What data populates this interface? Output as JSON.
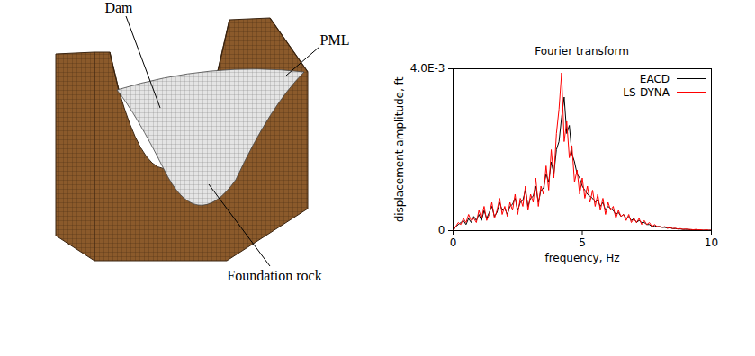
{
  "chart_data": {
    "type": "line",
    "title": "Fourier transform",
    "xlabel": "frequency, Hz",
    "ylabel": "displacement amplitude, ft",
    "x": [
      0,
      0.1,
      0.2,
      0.3,
      0.4,
      0.5,
      0.6,
      0.7,
      0.8,
      0.9,
      1,
      1.1,
      1.2,
      1.3,
      1.4,
      1.5,
      1.6,
      1.7,
      1.8,
      1.9,
      2,
      2.1,
      2.2,
      2.3,
      2.4,
      2.5,
      2.6,
      2.7,
      2.8,
      2.9,
      3,
      3.1,
      3.2,
      3.3,
      3.4,
      3.5,
      3.6,
      3.7,
      3.8,
      3.9,
      4,
      4.1,
      4.2,
      4.3,
      4.4,
      4.5,
      4.6,
      4.7,
      4.8,
      4.9,
      5,
      5.1,
      5.2,
      5.3,
      5.4,
      5.5,
      5.6,
      5.7,
      5.8,
      5.9,
      6,
      6.1,
      6.2,
      6.3,
      6.4,
      6.5,
      6.6,
      6.7,
      6.8,
      6.9,
      7,
      7.1,
      7.2,
      7.3,
      7.4,
      7.5,
      7.6,
      7.7,
      7.8,
      7.9,
      8,
      8.1,
      8.2,
      8.3,
      8.4,
      8.5,
      8.6,
      8.7,
      8.8,
      8.9,
      9,
      9.1,
      9.2,
      9.3,
      9.4,
      9.5,
      9.6,
      9.7,
      9.8,
      9.9,
      10
    ],
    "series": [
      {
        "name": "EACD",
        "color": "#000000",
        "values": [
          0,
          0.0001,
          0.00015,
          0.0002,
          0.00025,
          0.00015,
          0.0003,
          0.0002,
          0.00035,
          0.00025,
          0.0004,
          0.00025,
          0.0005,
          0.0003,
          0.00045,
          0.0006,
          0.00035,
          0.00045,
          0.0007,
          0.0005,
          0.00055,
          0.0004,
          0.0006,
          0.00065,
          0.0008,
          0.0005,
          0.0007,
          0.00075,
          0.001,
          0.0006,
          0.0008,
          0.00085,
          0.0011,
          0.0007,
          0.001,
          0.00105,
          0.0014,
          0.0012,
          0.0017,
          0.0014,
          0.002,
          0.0022,
          0.0028,
          0.0033,
          0.0024,
          0.0026,
          0.0019,
          0.0017,
          0.0014,
          0.0013,
          0.0011,
          0.001,
          0.0009,
          0.00085,
          0.0008,
          0.0007,
          0.00075,
          0.0006,
          0.0007,
          0.0005,
          0.0006,
          0.00055,
          0.0005,
          0.0004,
          0.00045,
          0.00035,
          0.0004,
          0.0003,
          0.00035,
          0.00025,
          0.0003,
          0.0002,
          0.00025,
          0.0002,
          0.0002,
          0.00015,
          0.00015,
          0.0001,
          0.00012,
          0.0001,
          0.0001,
          8e-05,
          8e-05,
          6e-05,
          7e-05,
          5e-05,
          5e-05,
          4e-05,
          4e-05,
          3e-05,
          3e-05,
          3e-05,
          2e-05,
          2e-05,
          2e-05,
          2e-05,
          1e-05,
          1e-05,
          1e-05,
          1e-05,
          1e-05
        ]
      },
      {
        "name": "LS-DYNA",
        "color": "#ff0000",
        "values": [
          0,
          0.0001,
          0.0002,
          0.00015,
          0.0003,
          0.0002,
          0.0004,
          0.00025,
          0.0003,
          0.0002,
          0.0005,
          0.0003,
          0.0006,
          0.00025,
          0.0004,
          0.0007,
          0.0003,
          0.0005,
          0.0008,
          0.0004,
          0.0006,
          0.00035,
          0.0007,
          0.0005,
          0.0009,
          0.0004,
          0.0008,
          0.0006,
          0.0011,
          0.0005,
          0.0009,
          0.0007,
          0.0013,
          0.0006,
          0.0011,
          0.0009,
          0.0016,
          0.001,
          0.002,
          0.0013,
          0.0024,
          0.003,
          0.0039,
          0.0022,
          0.0027,
          0.0018,
          0.0021,
          0.0012,
          0.0015,
          0.0009,
          0.0013,
          0.0008,
          0.0011,
          0.0007,
          0.001,
          0.0006,
          0.0009,
          0.0005,
          0.0008,
          0.0004,
          0.0007,
          0.0005,
          0.0006,
          0.0003,
          0.0005,
          0.00035,
          0.0004,
          0.00025,
          0.0004,
          0.0002,
          0.0003,
          0.0002,
          0.0003,
          0.00015,
          0.00025,
          0.00015,
          0.0002,
          0.0001,
          0.00015,
          0.0001,
          0.0001,
          8e-05,
          0.0001,
          6e-05,
          8e-05,
          5e-05,
          6e-05,
          4e-05,
          5e-05,
          3e-05,
          4e-05,
          3e-05,
          3e-05,
          2e-05,
          3e-05,
          2e-05,
          2e-05,
          1e-05,
          2e-05,
          1e-05,
          1e-05
        ]
      }
    ],
    "xlim": [
      0,
      10
    ],
    "xticks": [
      0,
      5,
      10
    ],
    "ylim": [
      0,
      0.004
    ],
    "yticks": [
      0,
      {
        "value": 0.004,
        "label": "4.0E-3"
      }
    ],
    "grid": false,
    "legend": "top-right"
  },
  "diagram": {
    "labels": [
      "Dam",
      "PML",
      "Foundation rock"
    ]
  }
}
